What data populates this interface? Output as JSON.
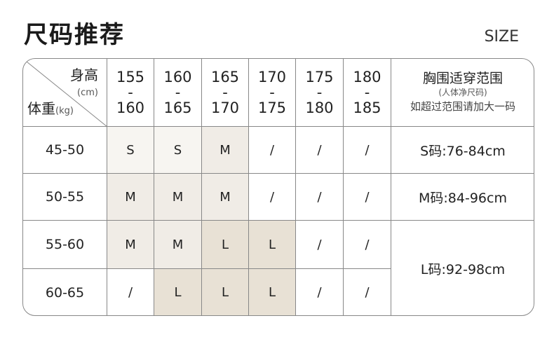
{
  "title": "尺码推荐",
  "size_label": "SIZE",
  "header": {
    "height_label": "身高",
    "height_unit": "(cm)",
    "weight_label": "体重",
    "weight_unit": "(kg)",
    "columns": [
      {
        "from": "155",
        "sep": "-",
        "to": "160"
      },
      {
        "from": "160",
        "sep": "-",
        "to": "165"
      },
      {
        "from": "165",
        "sep": "-",
        "to": "170"
      },
      {
        "from": "170",
        "sep": "-",
        "to": "175"
      },
      {
        "from": "175",
        "sep": "-",
        "to": "180"
      },
      {
        "from": "180",
        "sep": "-",
        "to": "185"
      }
    ],
    "chest_title": "胸围适穿范围",
    "chest_note": "(人体净尺码)",
    "chest_hint": "如超过范围请加大一码"
  },
  "rows": [
    {
      "weight": "45-50",
      "sizes": [
        "S",
        "S",
        "M",
        "/",
        "/",
        "/"
      ]
    },
    {
      "weight": "50-55",
      "sizes": [
        "M",
        "M",
        "M",
        "/",
        "/",
        "/"
      ]
    },
    {
      "weight": "55-60",
      "sizes": [
        "M",
        "M",
        "L",
        "L",
        "/",
        "/"
      ]
    },
    {
      "weight": "60-65",
      "sizes": [
        "/",
        "L",
        "L",
        "L",
        "/",
        "/"
      ]
    }
  ],
  "chest": [
    "S码:76-84cm",
    "M码:84-96cm",
    "L码:92-98cm"
  ],
  "colors": {
    "S": "#f7f5f1",
    "M": "#f0ece6",
    "L": "#e8e1d5",
    "grid": "#888888"
  }
}
